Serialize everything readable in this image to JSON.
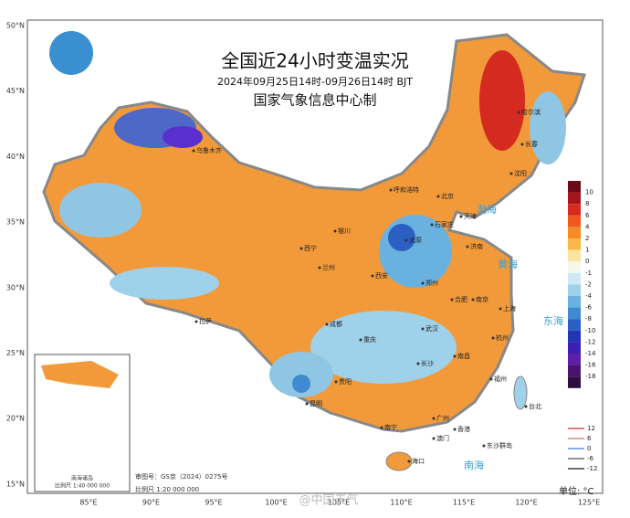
{
  "header": {
    "title": "全国近24小时变温实况",
    "subtitle": "2024年09月25日14时-09月26日14时 BJT",
    "issuer": "国家气象信息中心制"
  },
  "axes": {
    "latitude": [
      "50°N",
      "45°N",
      "40°N",
      "35°N",
      "30°N",
      "25°N",
      "20°N",
      "15°N"
    ],
    "longitude": [
      "85°E",
      "90°E",
      "95°E",
      "100°E",
      "105°E",
      "110°E",
      "115°E",
      "120°E",
      "125°E"
    ]
  },
  "legend": {
    "labels": [
      "10",
      "8",
      "6",
      "4",
      "2",
      "1",
      "0",
      "-1",
      "-2",
      "-4",
      "-6",
      "-8",
      "-10",
      "-12",
      "-14",
      "-16",
      "-18"
    ],
    "colors": [
      "#6b0a16",
      "#a3141d",
      "#d42a20",
      "#ee5a1e",
      "#f58a27",
      "#f9b849",
      "#fde3a0",
      "#f4f8ea",
      "#cfe9f4",
      "#9fd1ea",
      "#69b2df",
      "#3f8ad0",
      "#2b5fc2",
      "#2236b4",
      "#3a1fb0",
      "#5d1ea8",
      "#4a1373",
      "#2e0e3c"
    ]
  },
  "line_legend": {
    "labels": [
      "12",
      "6",
      "0",
      "-6",
      "-12"
    ],
    "colors": [
      "#e05050",
      "#f08080",
      "#6090e0",
      "#707070",
      "#404040"
    ]
  },
  "unit": "单位: °C",
  "footer": {
    "map_number": "审图号：GS京（2024）0275号",
    "scale": "比例尺 1:20 000 000",
    "watermark": "@中国天气"
  },
  "inset": {
    "scale": "比例尺 1:40 000 000",
    "label": "南海诸岛"
  },
  "seas": [
    "渤海",
    "黄海",
    "东海",
    "南海"
  ],
  "places": [
    "乌鲁木齐",
    "拉萨",
    "西宁",
    "兰州",
    "银川",
    "呼和浩特",
    "北京",
    "天津",
    "石家庄",
    "太原",
    "济南",
    "郑州",
    "西安",
    "成都",
    "重庆",
    "武汉",
    "合肥",
    "南京",
    "上海",
    "杭州",
    "长沙",
    "南昌",
    "福州",
    "台北",
    "贵阳",
    "昆明",
    "南宁",
    "广州",
    "香港",
    "澳门",
    "海口",
    "沈阳",
    "长春",
    "哈尔滨",
    "东沙群岛"
  ]
}
